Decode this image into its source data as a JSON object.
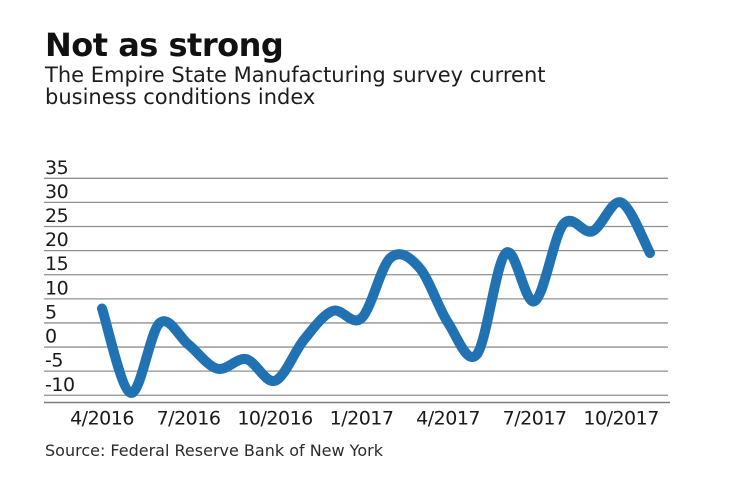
{
  "header": {
    "title": "Not as strong",
    "subtitle": "The Empire State Manufacturing survey current business conditions index"
  },
  "source": "Source: Federal Reserve Bank of New York",
  "chart_data": {
    "type": "line",
    "title": "Not as strong",
    "subtitle": "The Empire State Manufacturing survey current business conditions index",
    "series_name": "Empire State Manufacturing current business conditions index",
    "categories": [
      "4/2016",
      "5/2016",
      "6/2016",
      "7/2016",
      "8/2016",
      "9/2016",
      "10/2016",
      "11/2016",
      "12/2016",
      "1/2017",
      "2/2017",
      "3/2017",
      "4/2017",
      "5/2017",
      "6/2017",
      "7/2017",
      "8/2017",
      "9/2017",
      "10/2017",
      "11/2017"
    ],
    "values": [
      8.0,
      -9.5,
      5.0,
      0.5,
      -4.5,
      -2.5,
      -7.0,
      1.5,
      7.5,
      6.0,
      18.5,
      16.5,
      5.0,
      -1.5,
      19.5,
      9.5,
      25.5,
      24.0,
      30.0,
      19.5
    ],
    "x_tick_labels": [
      "4/2016",
      "7/2016",
      "10/2016",
      "1/2017",
      "4/2017",
      "7/2017",
      "10/2017"
    ],
    "x_tick_month_indices": [
      0,
      3,
      6,
      9,
      12,
      15,
      18
    ],
    "y_ticks": [
      35,
      30,
      25,
      20,
      15,
      10,
      5,
      0,
      -5,
      -10
    ],
    "ylim": [
      -11.5,
      35
    ],
    "grid": "horizontal-only",
    "legend": "none",
    "line_smoothing": "spline",
    "colors": {
      "line": "#2172b2",
      "grid": "#909090",
      "axis": "#7c7c7c",
      "tick_text": "#1a1a1a"
    },
    "source": "Source: Federal Reserve Bank of New York"
  }
}
